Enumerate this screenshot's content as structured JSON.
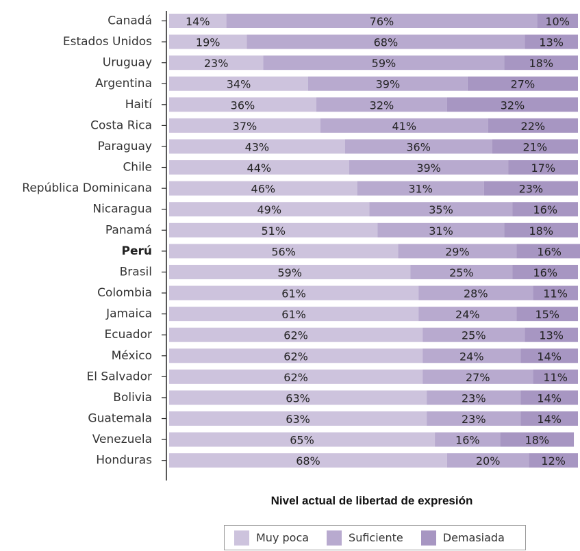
{
  "chart_data": {
    "type": "bar",
    "orientation": "horizontal",
    "stacked": true,
    "xlabel": "Nivel actual de libertad de expresión",
    "xlim": [
      0,
      100
    ],
    "categories": [
      "Canadá",
      "Estados Unidos",
      "Uruguay",
      "Argentina",
      "Haití",
      "Costa Rica",
      "Paraguay",
      "Chile",
      "República Dominicana",
      "Nicaragua",
      "Panamá",
      "Perú",
      "Brasil",
      "Colombia",
      "Jamaica",
      "Ecuador",
      "México",
      "El Salvador",
      "Bolivia",
      "Guatemala",
      "Venezuela",
      "Honduras"
    ],
    "highlighted_category": "Perú",
    "series": [
      {
        "name": "Muy poca",
        "color": "#cdc3dd",
        "values": [
          14,
          19,
          23,
          34,
          36,
          37,
          43,
          44,
          46,
          49,
          51,
          56,
          59,
          61,
          61,
          62,
          62,
          62,
          63,
          63,
          65,
          68
        ],
        "labels": [
          "14%",
          "19%",
          "23%",
          "34%",
          "36%",
          "37%",
          "43%",
          "44%",
          "46%",
          "49%",
          "51%",
          "56%",
          "59%",
          "61%",
          "61%",
          "62%",
          "62%",
          "62%",
          "63%",
          "63%",
          "65%",
          "68%"
        ]
      },
      {
        "name": "Suficiente",
        "color": "#b8aacf",
        "values": [
          76,
          68,
          59,
          39,
          32,
          41,
          36,
          39,
          31,
          35,
          31,
          29,
          25,
          28,
          24,
          25,
          24,
          27,
          23,
          23,
          16,
          20
        ],
        "labels": [
          "76%",
          "68%",
          "59%",
          "39%",
          "32%",
          "41%",
          "36%",
          "39%",
          "31%",
          "35%",
          "31%",
          "29%",
          "25%",
          "28%",
          "24%",
          "25%",
          "24%",
          "27%",
          "23%",
          "23%",
          "16%",
          "20%"
        ]
      },
      {
        "name": "Demasiada",
        "color": "#a796c2",
        "values": [
          10,
          13,
          18,
          27,
          32,
          22,
          21,
          17,
          23,
          16,
          18,
          16,
          16,
          11,
          15,
          13,
          14,
          11,
          14,
          14,
          18,
          12
        ],
        "labels": [
          "10%",
          "13%",
          "18%",
          "27%",
          "32%",
          "22%",
          "21%",
          "17%",
          "23%",
          "16%",
          "18%",
          "16%",
          "16%",
          "11%",
          "15%",
          "13%",
          "14%",
          "11%",
          "14%",
          "14%",
          "18%",
          "12%"
        ]
      }
    ],
    "legend": [
      "Muy poca",
      "Suficiente",
      "Demasiada"
    ],
    "legend_position": "bottom",
    "grid": false
  }
}
